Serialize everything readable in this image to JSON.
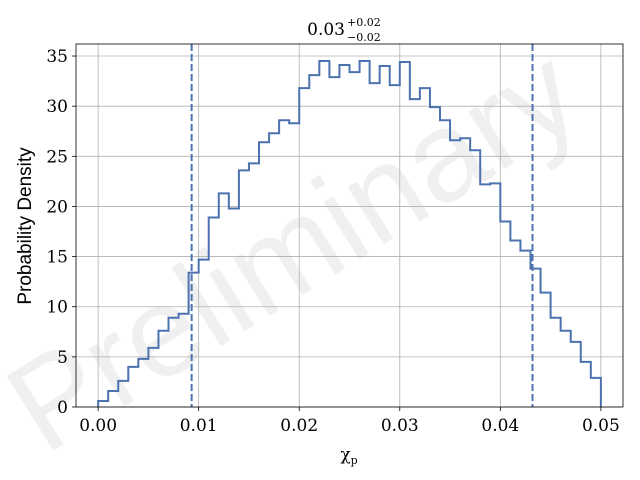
{
  "chart_data": {
    "type": "histogram-step",
    "title": {
      "main": "0.03",
      "sup": "+0.02",
      "sub": "−0.02"
    },
    "xlabel_symbol": "χ",
    "xlabel_subscript": "p",
    "ylabel": "Probability Density",
    "watermark": "Preliminary",
    "xlim": [
      -0.0022,
      0.0522
    ],
    "ylim": [
      0,
      36.2
    ],
    "xticks": [
      0.0,
      0.01,
      0.02,
      0.03,
      0.04,
      0.05
    ],
    "xtick_labels": [
      "0.00",
      "0.01",
      "0.02",
      "0.03",
      "0.04",
      "0.05"
    ],
    "yticks": [
      0,
      5,
      10,
      15,
      20,
      25,
      30,
      35
    ],
    "ytick_labels": [
      "0",
      "5",
      "10",
      "15",
      "20",
      "25",
      "30",
      "35"
    ],
    "grid": true,
    "bin_edges": [
      0.0,
      0.001,
      0.002,
      0.003,
      0.004,
      0.005,
      0.006,
      0.007,
      0.008,
      0.009,
      0.01,
      0.011,
      0.012,
      0.013,
      0.014,
      0.015,
      0.016,
      0.017,
      0.018,
      0.019,
      0.02,
      0.021,
      0.022,
      0.023,
      0.024,
      0.025,
      0.026,
      0.027,
      0.028,
      0.029,
      0.03,
      0.031,
      0.032,
      0.033,
      0.034,
      0.035,
      0.036,
      0.037,
      0.038,
      0.039,
      0.04,
      0.041,
      0.042,
      0.043,
      0.044,
      0.045,
      0.046,
      0.047,
      0.048,
      0.049,
      0.05
    ],
    "densities": [
      0.6,
      1.6,
      2.6,
      4.0,
      4.8,
      5.9,
      7.6,
      8.9,
      9.3,
      13.4,
      14.7,
      18.9,
      21.3,
      19.8,
      23.6,
      24.3,
      26.4,
      27.3,
      28.6,
      28.3,
      31.8,
      33.1,
      34.5,
      32.9,
      34.1,
      33.4,
      34.5,
      32.3,
      34.0,
      32.1,
      34.4,
      30.7,
      31.8,
      29.9,
      28.6,
      26.6,
      26.8,
      25.6,
      22.2,
      22.3,
      18.5,
      16.6,
      15.6,
      13.8,
      11.4,
      8.9,
      7.6,
      6.5,
      4.5,
      2.9
    ],
    "quantile_lines": [
      0.0093,
      0.0432
    ],
    "color": "#4c72b0"
  }
}
